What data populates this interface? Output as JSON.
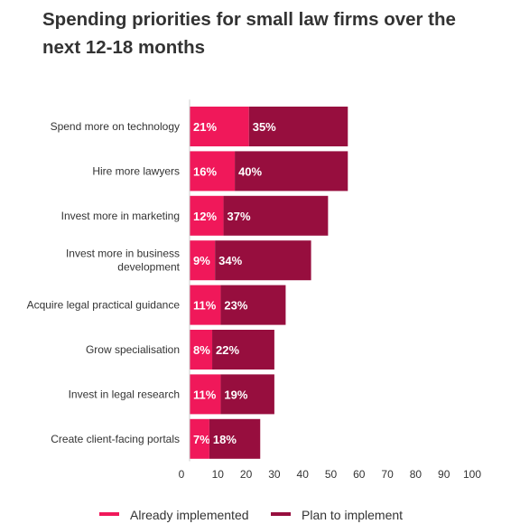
{
  "chart_data": {
    "type": "bar",
    "orientation": "horizontal",
    "stacked": true,
    "title": "Spending priorities for small law firms over the next 12-18 months",
    "categories": [
      "Spend more on technology",
      "Hire more lawyers",
      "Invest more in marketing",
      "Invest more in business development",
      "Acquire legal practical guidance",
      "Grow specialisation",
      "Invest in legal research",
      "Create client-facing portals"
    ],
    "series": [
      {
        "name": "Already implemented",
        "color": "#f0185a",
        "values": [
          21,
          16,
          12,
          9,
          11,
          8,
          11,
          7
        ]
      },
      {
        "name": "Plan to implement",
        "color": "#970e3e",
        "values": [
          35,
          40,
          37,
          34,
          23,
          22,
          19,
          18
        ]
      }
    ],
    "value_suffix": "%",
    "xlim": [
      0,
      100
    ],
    "xticks": [
      "0",
      "10",
      "20",
      "30",
      "40",
      "50",
      "60",
      "70",
      "80",
      "90",
      "100"
    ],
    "grid": false,
    "legend_position": "bottom"
  }
}
